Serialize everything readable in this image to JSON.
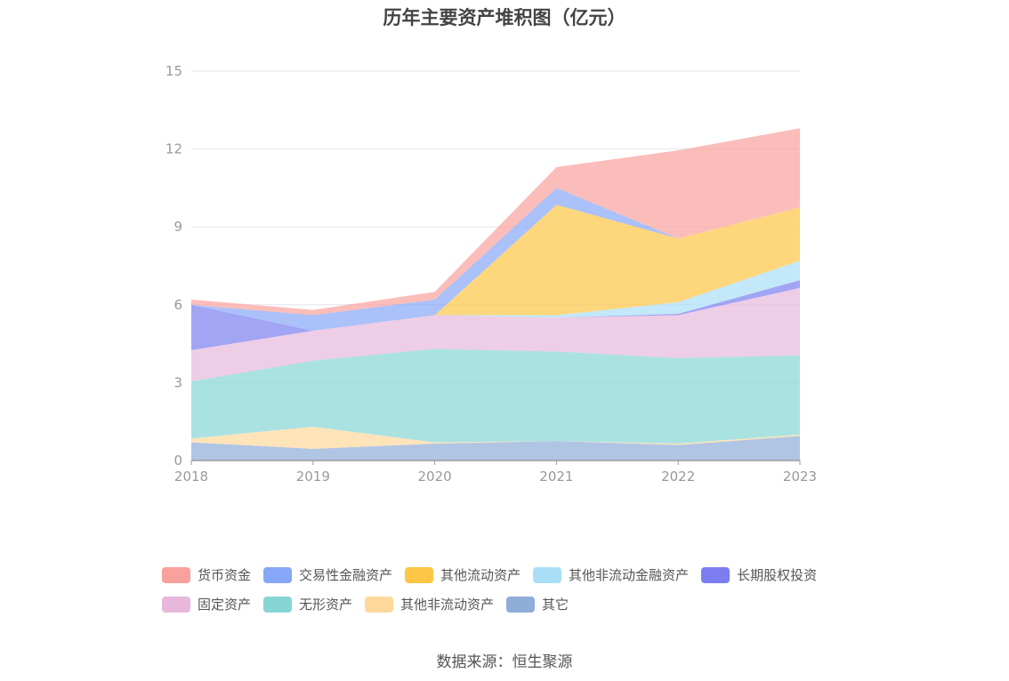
{
  "chart_data": {
    "type": "area",
    "stacked": true,
    "title": "历年主要资产堆积图（亿元）",
    "x": [
      "2018",
      "2019",
      "2020",
      "2021",
      "2022",
      "2023"
    ],
    "ylim": [
      0,
      15
    ],
    "yticks": [
      0,
      3,
      6,
      9,
      12,
      15
    ],
    "grid": true,
    "legend_position": "bottom",
    "series": [
      {
        "name": "其它",
        "color": "#8fadd8",
        "values": [
          0.7,
          0.45,
          0.65,
          0.75,
          0.6,
          0.95
        ]
      },
      {
        "name": "其他非流动资产",
        "color": "#ffd99b",
        "values": [
          0.15,
          0.85,
          0.05,
          0.0,
          0.05,
          0.05
        ]
      },
      {
        "name": "无形资产",
        "color": "#86d6d6",
        "values": [
          2.2,
          2.55,
          3.6,
          3.45,
          3.3,
          3.05
        ]
      },
      {
        "name": "固定资产",
        "color": "#e7b8db",
        "values": [
          1.2,
          1.15,
          1.3,
          1.3,
          1.65,
          2.6
        ]
      },
      {
        "name": "长期股权投资",
        "color": "#7b7df0",
        "values": [
          1.75,
          0.0,
          0.0,
          0.0,
          0.05,
          0.3
        ]
      },
      {
        "name": "其他非流动金融资产",
        "color": "#a9def6",
        "values": [
          0.0,
          0.0,
          0.0,
          0.1,
          0.45,
          0.75
        ]
      },
      {
        "name": "其他流动资产",
        "color": "#fdc646",
        "values": [
          0.0,
          0.0,
          0.0,
          4.25,
          2.45,
          2.05
        ]
      },
      {
        "name": "交易性金融资产",
        "color": "#86a7f7",
        "values": [
          0.0,
          0.6,
          0.6,
          0.65,
          0.0,
          0.0
        ]
      },
      {
        "name": "货币资金",
        "color": "#f9a19c",
        "values": [
          0.2,
          0.2,
          0.3,
          0.8,
          3.4,
          3.05
        ]
      }
    ]
  },
  "legend_rows": [
    [
      {
        "label": "货币资金",
        "color": "#f9a19c"
      },
      {
        "label": "交易性金融资产",
        "color": "#86a7f7"
      },
      {
        "label": "其他流动资产",
        "color": "#fdc646"
      },
      {
        "label": "其他非流动金融资产",
        "color": "#a9def6"
      },
      {
        "label": "长期股权投资",
        "color": "#7b7df0"
      }
    ],
    [
      {
        "label": "固定资产",
        "color": "#e7b8db"
      },
      {
        "label": "无形资产",
        "color": "#86d6d6"
      },
      {
        "label": "其他非流动资产",
        "color": "#ffd99b"
      },
      {
        "label": "其它",
        "color": "#8fadd8"
      }
    ]
  ],
  "source": "数据来源：恒生聚源"
}
